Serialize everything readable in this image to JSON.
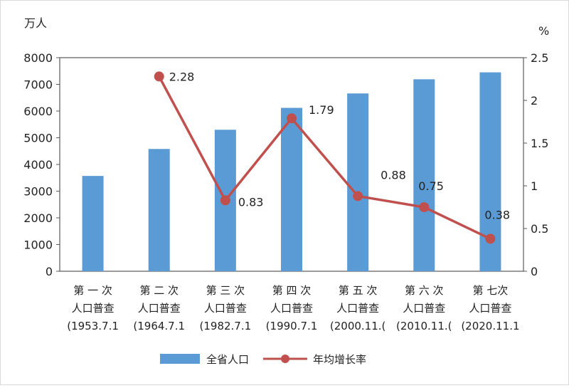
{
  "chart_data": {
    "type": "bar+line",
    "left_axis_unit": "万人",
    "right_axis_unit": "%",
    "left_ylim": [
      0,
      8000
    ],
    "left_ticks": [
      "0",
      "1000",
      "2000",
      "3000",
      "4000",
      "5000",
      "6000",
      "7000",
      "8000"
    ],
    "right_ylim": [
      0,
      2.5
    ],
    "right_ticks": [
      "0",
      "0.5",
      "1",
      "1.5",
      "2",
      "2.5"
    ],
    "categories": [
      [
        "第 一 次",
        "人口普查",
        "(1953.7.1"
      ],
      [
        "第 二 次",
        "人口普查",
        "(1964.7.1"
      ],
      [
        "第 三 次",
        "人口普查",
        "(1982.7.1"
      ],
      [
        "第 四 次",
        "人口普查",
        "(1990.7.1"
      ],
      [
        "第 五 次",
        "人口普查",
        "(2000.11.("
      ],
      [
        "第 六 次",
        "人口普查",
        "(2010.11.("
      ],
      [
        "第 七次",
        "人口普查",
        "(2020.11.1"
      ]
    ],
    "series": [
      {
        "name": "全省人口",
        "type": "bar",
        "axis": "left",
        "color": "#5b9bd5",
        "values": [
          3570,
          4580,
          5300,
          6120,
          6660,
          7190,
          7450
        ]
      },
      {
        "name": "年均增长率",
        "type": "line",
        "axis": "right",
        "color": "#c0504d",
        "values": [
          null,
          2.28,
          0.83,
          1.79,
          0.88,
          0.75,
          0.38
        ],
        "labels": [
          "",
          "2.28",
          "0.83",
          "1.79",
          "0.88",
          "0.75",
          "0.38"
        ]
      }
    ],
    "grid": false,
    "legend_position": "bottom"
  }
}
